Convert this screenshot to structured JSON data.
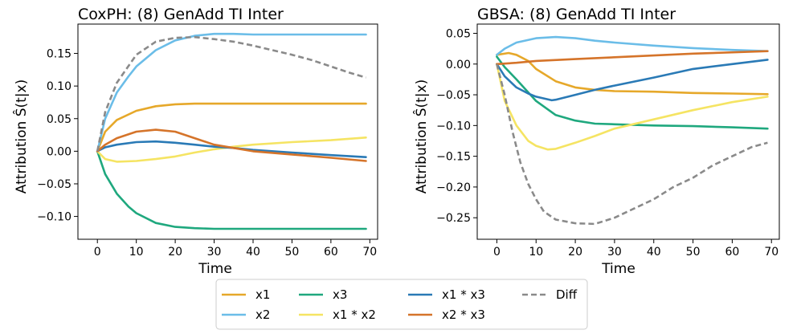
{
  "chart_data": [
    {
      "type": "line",
      "title": "CoxPH: (8) GenAdd TI Inter",
      "xlabel": "Time",
      "ylabel": "Attribution Ŝ(t|x)",
      "xlim": [
        -5,
        72
      ],
      "ylim": [
        -0.135,
        0.195
      ],
      "xticks": [
        0,
        10,
        20,
        30,
        40,
        50,
        60,
        70
      ],
      "xtick_labels": [
        "0",
        "10",
        "20",
        "30",
        "40",
        "50",
        "60",
        "70"
      ],
      "yticks": [
        -0.1,
        -0.05,
        0.0,
        0.05,
        0.1,
        0.15
      ],
      "ytick_labels": [
        "−0.10",
        "−0.05",
        "0.00",
        "0.05",
        "0.10",
        "0.15"
      ],
      "series": [
        {
          "name": "x1",
          "color": "#E6A82A",
          "style": "solid",
          "x": [
            0,
            2,
            5,
            10,
            15,
            20,
            25,
            30,
            40,
            50,
            60,
            69
          ],
          "y": [
            0,
            0.03,
            0.048,
            0.062,
            0.069,
            0.072,
            0.073,
            0.073,
            0.073,
            0.073,
            0.073,
            0.073
          ]
        },
        {
          "name": "x2",
          "color": "#6BBDE8",
          "style": "solid",
          "x": [
            0,
            2,
            5,
            8,
            10,
            15,
            20,
            25,
            30,
            35,
            40,
            50,
            60,
            69
          ],
          "y": [
            0,
            0.05,
            0.09,
            0.115,
            0.13,
            0.155,
            0.17,
            0.177,
            0.18,
            0.18,
            0.179,
            0.179,
            0.179,
            0.179
          ]
        },
        {
          "name": "x3",
          "color": "#1FA87E",
          "style": "solid",
          "x": [
            0,
            2,
            5,
            8,
            10,
            15,
            20,
            25,
            30,
            40,
            50,
            60,
            69
          ],
          "y": [
            0,
            -0.035,
            -0.065,
            -0.085,
            -0.095,
            -0.11,
            -0.116,
            -0.118,
            -0.119,
            -0.119,
            -0.119,
            -0.119,
            -0.119
          ]
        },
        {
          "name": "x1 * x2",
          "color": "#F5E463",
          "style": "solid",
          "x": [
            0,
            2,
            5,
            10,
            15,
            20,
            25,
            30,
            35,
            40,
            50,
            60,
            69
          ],
          "y": [
            0,
            -0.012,
            -0.016,
            -0.015,
            -0.012,
            -0.008,
            -0.002,
            0.003,
            0.007,
            0.01,
            0.014,
            0.017,
            0.021
          ]
        },
        {
          "name": "x1 * x3",
          "color": "#2A7AB6",
          "style": "solid",
          "x": [
            0,
            2,
            5,
            10,
            15,
            20,
            25,
            30,
            35,
            40,
            50,
            60,
            69
          ],
          "y": [
            0,
            0.006,
            0.01,
            0.014,
            0.015,
            0.013,
            0.01,
            0.007,
            0.005,
            0.002,
            -0.002,
            -0.006,
            -0.009
          ]
        },
        {
          "name": "x2 * x3",
          "color": "#D5742A",
          "style": "solid",
          "x": [
            0,
            2,
            5,
            10,
            15,
            20,
            25,
            30,
            35,
            40,
            50,
            60,
            69
          ],
          "y": [
            0,
            0.01,
            0.02,
            0.03,
            0.033,
            0.03,
            0.02,
            0.01,
            0.005,
            0,
            -0.005,
            -0.01,
            -0.015
          ]
        },
        {
          "name": "Diff",
          "color": "#8A8A8A",
          "style": "dashed",
          "x": [
            0,
            2,
            5,
            10,
            15,
            20,
            25,
            30,
            35,
            40,
            45,
            50,
            55,
            60,
            65,
            69
          ],
          "y": [
            0,
            0.06,
            0.105,
            0.148,
            0.168,
            0.174,
            0.175,
            0.172,
            0.168,
            0.162,
            0.155,
            0.148,
            0.14,
            0.13,
            0.12,
            0.113
          ]
        }
      ]
    },
    {
      "type": "line",
      "title": "GBSA: (8) GenAdd TI Inter",
      "xlabel": "Time",
      "ylabel": "Attribution Ŝ(t|x)",
      "xlim": [
        -5,
        72
      ],
      "ylim": [
        -0.285,
        0.065
      ],
      "xticks": [
        0,
        10,
        20,
        30,
        40,
        50,
        60,
        70
      ],
      "xtick_labels": [
        "0",
        "10",
        "20",
        "30",
        "40",
        "50",
        "60",
        "70"
      ],
      "yticks": [
        -0.25,
        -0.2,
        -0.15,
        -0.1,
        -0.05,
        0.0,
        0.05
      ],
      "ytick_labels": [
        "−0.25",
        "−0.20",
        "−0.15",
        "−0.10",
        "−0.05",
        "0.00",
        "0.05"
      ],
      "series": [
        {
          "name": "x1",
          "color": "#E6A82A",
          "style": "solid",
          "x": [
            0,
            3,
            5,
            8,
            10,
            15,
            20,
            25,
            30,
            40,
            50,
            60,
            69
          ],
          "y": [
            0.015,
            0.018,
            0.015,
            0.005,
            -0.008,
            -0.028,
            -0.038,
            -0.042,
            -0.044,
            -0.045,
            -0.047,
            -0.048,
            -0.049
          ]
        },
        {
          "name": "x2",
          "color": "#6BBDE8",
          "style": "solid",
          "x": [
            0,
            2,
            5,
            10,
            15,
            20,
            25,
            30,
            40,
            50,
            60,
            69
          ],
          "y": [
            0.015,
            0.025,
            0.035,
            0.042,
            0.044,
            0.042,
            0.038,
            0.035,
            0.03,
            0.026,
            0.023,
            0.021
          ]
        },
        {
          "name": "x3",
          "color": "#1FA87E",
          "style": "solid",
          "x": [
            0,
            2,
            5,
            10,
            15,
            20,
            25,
            30,
            40,
            50,
            60,
            69
          ],
          "y": [
            0.012,
            -0.005,
            -0.025,
            -0.06,
            -0.083,
            -0.092,
            -0.097,
            -0.098,
            -0.1,
            -0.101,
            -0.103,
            -0.105
          ]
        },
        {
          "name": "x1 * x2",
          "color": "#F5E463",
          "style": "solid",
          "x": [
            0,
            2,
            5,
            8,
            10,
            13,
            15,
            20,
            25,
            30,
            40,
            50,
            60,
            69
          ],
          "y": [
            0,
            -0.06,
            -0.1,
            -0.125,
            -0.133,
            -0.139,
            -0.138,
            -0.128,
            -0.117,
            -0.105,
            -0.09,
            -0.075,
            -0.062,
            -0.053
          ]
        },
        {
          "name": "x1 * x3",
          "color": "#2A7AB6",
          "style": "solid",
          "x": [
            0,
            2,
            5,
            8,
            10,
            14,
            15,
            20,
            25,
            30,
            40,
            50,
            60,
            69
          ],
          "y": [
            0,
            -0.02,
            -0.038,
            -0.048,
            -0.053,
            -0.059,
            -0.058,
            -0.05,
            -0.042,
            -0.035,
            -0.022,
            -0.008,
            0.0,
            0.007
          ]
        },
        {
          "name": "x2 * x3",
          "color": "#D5742A",
          "style": "solid",
          "x": [
            0,
            5,
            10,
            20,
            30,
            40,
            50,
            60,
            69
          ],
          "y": [
            0,
            0.002,
            0.005,
            0.008,
            0.011,
            0.014,
            0.017,
            0.019,
            0.021
          ]
        },
        {
          "name": "Diff",
          "color": "#8A8A8A",
          "style": "dashed",
          "x": [
            0,
            2,
            4,
            6,
            8,
            10,
            12,
            15,
            20,
            25,
            30,
            35,
            40,
            45,
            50,
            55,
            60,
            65,
            69
          ],
          "y": [
            0,
            -0.05,
            -0.11,
            -0.16,
            -0.195,
            -0.22,
            -0.24,
            -0.253,
            -0.259,
            -0.26,
            -0.25,
            -0.235,
            -0.22,
            -0.2,
            -0.185,
            -0.165,
            -0.15,
            -0.135,
            -0.128
          ]
        }
      ]
    }
  ],
  "legend": {
    "placement": "bottom-center",
    "entries": [
      {
        "label": "x1",
        "color": "#E6A82A",
        "style": "solid"
      },
      {
        "label": "x2",
        "color": "#6BBDE8",
        "style": "solid"
      },
      {
        "label": "x3",
        "color": "#1FA87E",
        "style": "solid"
      },
      {
        "label": "x1 * x2",
        "color": "#F5E463",
        "style": "solid"
      },
      {
        "label": "x1 * x3",
        "color": "#2A7AB6",
        "style": "solid"
      },
      {
        "label": "x2 * x3",
        "color": "#D5742A",
        "style": "solid"
      },
      {
        "label": "Diff",
        "color": "#8A8A8A",
        "style": "dashed"
      }
    ]
  }
}
